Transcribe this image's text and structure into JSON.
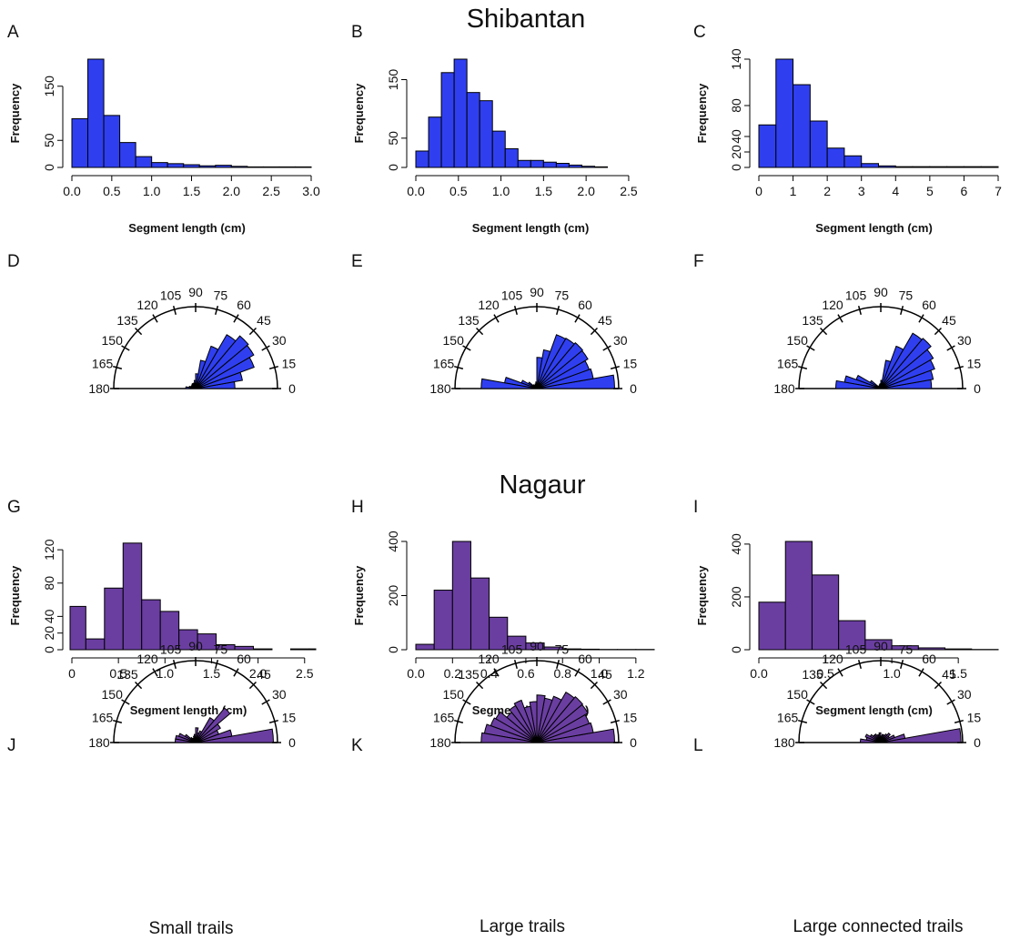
{
  "section_titles": [
    "Shibantan",
    "Nagaur"
  ],
  "bottom_labels": [
    "Small trails",
    "Large trails",
    "Large connected trails"
  ],
  "rose_ticks": [
    "0",
    "15",
    "30",
    "45",
    "60",
    "75",
    "90",
    "105",
    "120",
    "135",
    "150",
    "165",
    "180"
  ],
  "colors": {
    "shibantan": "#2f3ff0",
    "nagaur": "#6a3ea1"
  },
  "chart_data": [
    {
      "panel": "A",
      "type": "bar",
      "xlabel": "Segment length (cm)",
      "ylabel": "Frequency",
      "bin_width": 0.2,
      "x_start": 0,
      "xlim": [
        0,
        3.0
      ],
      "ylim": [
        0,
        200
      ],
      "xticks": [
        "0.0",
        "0.5",
        "1.0",
        "1.5",
        "2.0",
        "2.5",
        "3.0"
      ],
      "yticks": [
        "0",
        "50",
        "150"
      ],
      "values": [
        90,
        200,
        96,
        46,
        20,
        9,
        7,
        5,
        3,
        4,
        2,
        1,
        1,
        1,
        1
      ]
    },
    {
      "panel": "B",
      "type": "bar",
      "xlabel": "Segment length (cm)",
      "ylabel": "Frequency",
      "bin_width": 0.15,
      "x_start": 0,
      "xlim": [
        0,
        2.8
      ],
      "ylim": [
        0,
        185
      ],
      "xticks": [
        "0.0",
        "0.5",
        "1.0",
        "1.5",
        "2.0",
        "2.5"
      ],
      "yticks": [
        "0",
        "50",
        "150"
      ],
      "values": [
        28,
        86,
        162,
        185,
        128,
        114,
        62,
        32,
        12,
        12,
        9,
        7,
        4,
        2,
        1
      ]
    },
    {
      "panel": "C",
      "type": "bar",
      "xlabel": "Segment length (cm)",
      "ylabel": "Frequency",
      "bin_width": 0.5,
      "x_start": 0,
      "xlim": [
        0,
        7
      ],
      "ylim": [
        0,
        140
      ],
      "xticks": [
        "0",
        "1",
        "2",
        "3",
        "4",
        "5",
        "6",
        "7"
      ],
      "yticks": [
        "0",
        "20",
        "40",
        "80",
        "140"
      ],
      "values": [
        55,
        140,
        107,
        60,
        25,
        15,
        5,
        2,
        1,
        1,
        1,
        1,
        1,
        1
      ]
    },
    {
      "panel": "D",
      "type": "rose",
      "angles": [
        0,
        15,
        30,
        45,
        60,
        75,
        90,
        105,
        120,
        135,
        150,
        165,
        180
      ],
      "bin_width": 10,
      "values": [
        0.48,
        0.58,
        0.76,
        0.82,
        0.84,
        0.76,
        0.55,
        0.35,
        0.18,
        0.1,
        0.07,
        0.07,
        0.07,
        0.06,
        0.06,
        0.06,
        0.08,
        0.12
      ]
    },
    {
      "panel": "E",
      "type": "rose",
      "angles": [
        0,
        15,
        30,
        45,
        60,
        75,
        90,
        105,
        120,
        135,
        150,
        165,
        180
      ],
      "bin_width": 10,
      "values": [
        0.95,
        0.7,
        0.68,
        0.72,
        0.73,
        0.71,
        0.7,
        0.48,
        0.38,
        0.08,
        0.06,
        0.05,
        0.04,
        0.06,
        0.12,
        0.2,
        0.4,
        0.68
      ]
    },
    {
      "panel": "F",
      "type": "rose",
      "angles": [
        0,
        15,
        30,
        45,
        60,
        75,
        90,
        105,
        120,
        135,
        150,
        165,
        180
      ],
      "bin_width": 10,
      "values": [
        0.62,
        0.65,
        0.7,
        0.74,
        0.8,
        0.78,
        0.55,
        0.35,
        0.1,
        0.06,
        0.05,
        0.04,
        0.04,
        0.04,
        0.15,
        0.32,
        0.45,
        0.55
      ]
    },
    {
      "panel": "G",
      "type": "bar",
      "xlabel": "Segment length (cm)",
      "ylabel": "Frequency",
      "bin_width": 0.2,
      "x_start": -0.05,
      "xlim": [
        0,
        2.6
      ],
      "ylim": [
        0,
        130
      ],
      "xticks": [
        "0",
        "0.5",
        "1.0",
        "1.5",
        "2.0",
        "2.5"
      ],
      "yticks": [
        "0",
        "20",
        "40",
        "80",
        "120"
      ],
      "values": [
        52,
        13,
        74,
        128,
        60,
        46,
        24,
        19,
        6,
        4,
        1,
        0,
        1,
        1
      ]
    },
    {
      "panel": "H",
      "type": "bar",
      "xlabel": "Segment length (cm)",
      "ylabel": "Frequency",
      "bin_width": 0.1,
      "x_start": 0,
      "xlim": [
        0,
        1.3
      ],
      "ylim": [
        0,
        400
      ],
      "xticks": [
        "0.0",
        "0.2",
        "0.4",
        "0.6",
        "0.8",
        "1.0",
        "1.2"
      ],
      "yticks": [
        "0",
        "200",
        "400"
      ],
      "values": [
        20,
        220,
        400,
        265,
        120,
        50,
        25,
        10,
        3,
        2,
        1,
        1,
        1
      ]
    },
    {
      "panel": "I",
      "type": "bar",
      "xlabel": "Segment length (cm)",
      "ylabel": "Frequency",
      "bin_width": 0.2,
      "x_start": 0,
      "xlim": [
        0,
        1.8
      ],
      "ylim": [
        0,
        410
      ],
      "xticks": [
        "0.0",
        "0.5",
        "1.0",
        "1.5"
      ],
      "yticks": [
        "0",
        "200",
        "400"
      ],
      "values": [
        180,
        410,
        283,
        110,
        38,
        15,
        7,
        3,
        1
      ]
    },
    {
      "panel": "J",
      "type": "rose",
      "angles": [
        0,
        15,
        30,
        45,
        60,
        75,
        90,
        105,
        120,
        135,
        150,
        165,
        180
      ],
      "bin_width": 10,
      "values": [
        0.95,
        0.45,
        0.3,
        0.35,
        0.55,
        0.35,
        0.15,
        0.12,
        0.18,
        0.1,
        0.08,
        0.06,
        0.06,
        0.08,
        0.15,
        0.22,
        0.25,
        0.25
      ]
    },
    {
      "panel": "K",
      "type": "rose",
      "angles": [
        0,
        15,
        30,
        45,
        60,
        75,
        90,
        105,
        120,
        135,
        150,
        165,
        180
      ],
      "bin_width": 10,
      "values": [
        0.95,
        0.7,
        0.68,
        0.72,
        0.73,
        0.71,
        0.6,
        0.55,
        0.58,
        0.5,
        0.45,
        0.55,
        0.52,
        0.48,
        0.58,
        0.6,
        0.65,
        0.68
      ]
    },
    {
      "panel": "L",
      "type": "rose",
      "angles": [
        0,
        15,
        30,
        45,
        60,
        75,
        90,
        105,
        120,
        135,
        150,
        165,
        180
      ],
      "bin_width": 10,
      "values": [
        0.98,
        0.3,
        0.18,
        0.12,
        0.15,
        0.12,
        0.1,
        0.1,
        0.08,
        0.12,
        0.1,
        0.1,
        0.12,
        0.12,
        0.15,
        0.2,
        0.18,
        0.25
      ]
    }
  ]
}
